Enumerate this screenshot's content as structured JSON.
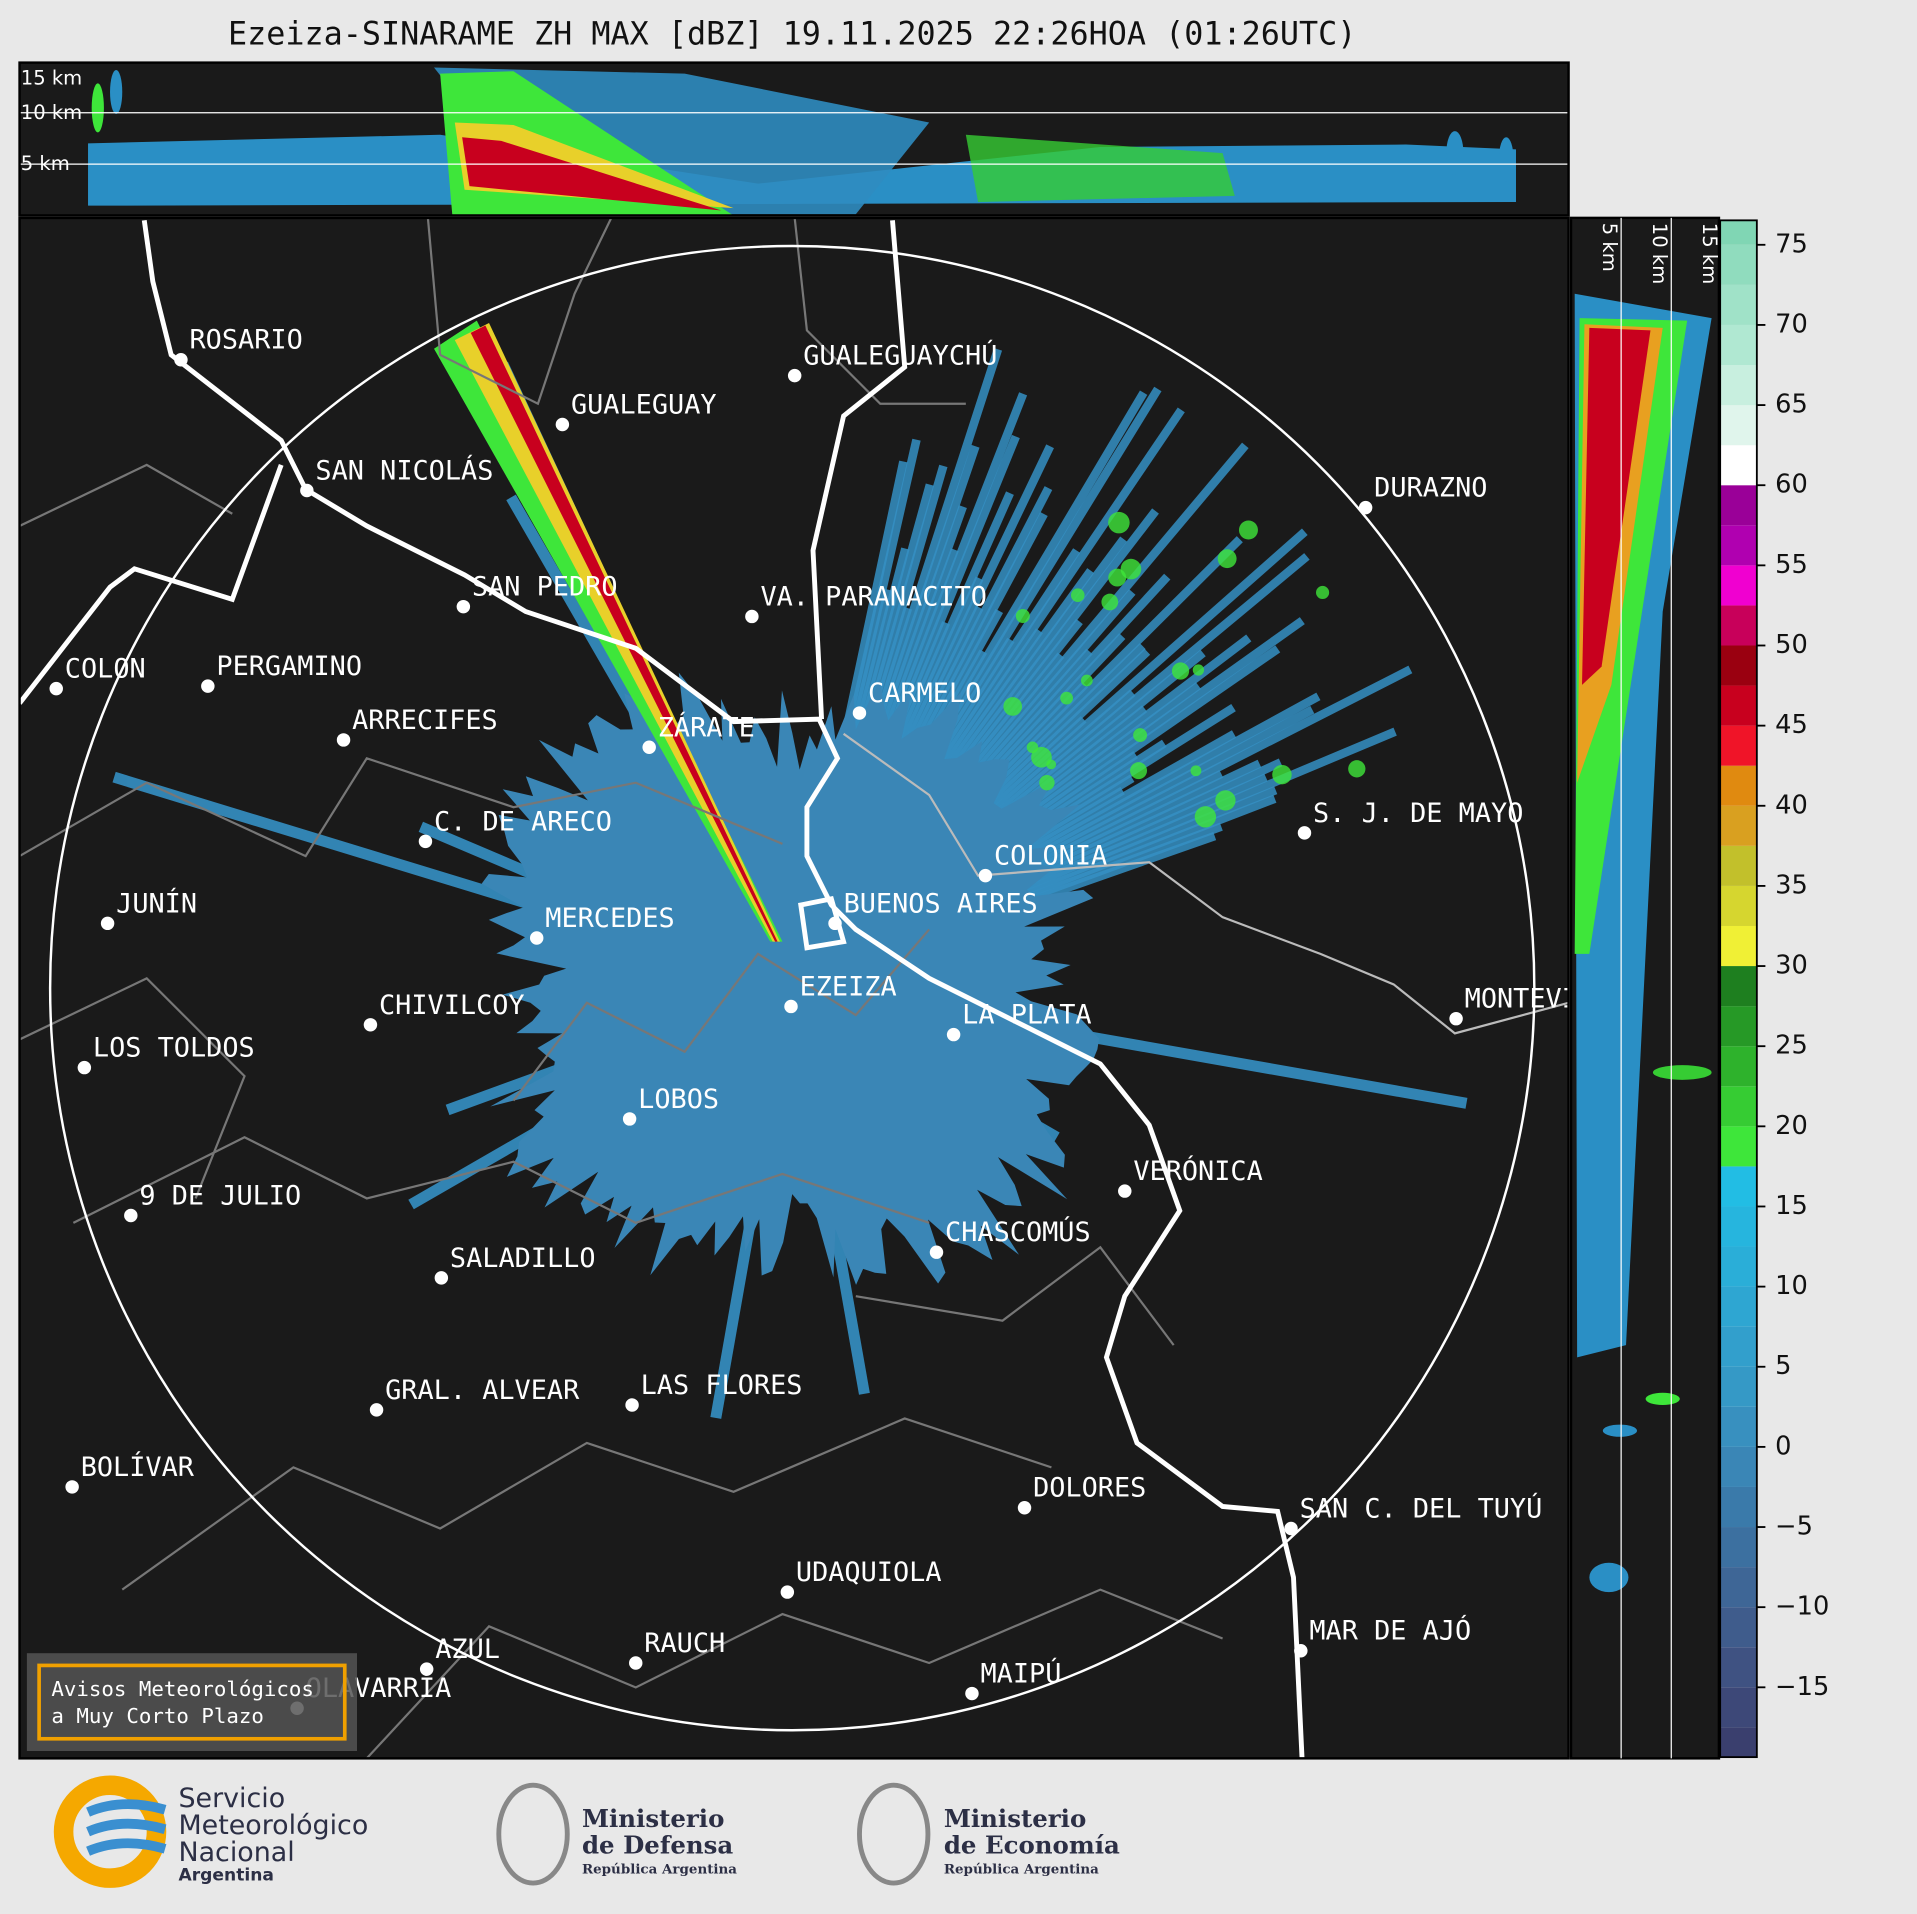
{
  "title": "Ezeiza-SINARAME ZH MAX [dBZ] 19.11.2025 22:26HOA (01:26UTC)",
  "top_heights": [
    {
      "value": 15,
      "label": "15 km"
    },
    {
      "value": 10,
      "label": "10 km"
    },
    {
      "value": 5,
      "label": "5 km"
    }
  ],
  "side_heights": [
    {
      "value": 5,
      "label": "5 km"
    },
    {
      "value": 10,
      "label": "10 km"
    },
    {
      "value": 15,
      "label": "15 km"
    }
  ],
  "cities": [
    "ROSARIO",
    "GUALEGUAYCHÚ",
    "GUALEGUAY",
    "SAN NICOLÁS",
    "DURAZNO",
    "SAN PEDRO",
    "VA. PARANACITO",
    "COLON",
    "PERGAMINO",
    "CARMELO",
    "ARRECIFES",
    "ZÁRATE",
    "C. DE ARECO",
    "S. J. DE MAYO",
    "COLONIA",
    "BUENOS AIRES",
    "JUNÍN",
    "MERCEDES",
    "EZEIZA",
    "CHIVILCOY",
    "LA PLATA",
    "MONTEVIDEO",
    "LOS TOLDOS",
    "LOBOS",
    "VERÓNICA",
    "9 DE JULIO",
    "CHASCOMÚS",
    "SALADILLO",
    "GRAL. ALVEAR",
    "LAS FLORES",
    "BOLÍVAR",
    "DOLORES",
    "SAN C. DEL TUYÚ",
    "UDAQUIOLA",
    "MAR DE AJÓ",
    "RAUCH",
    "AZUL",
    "OLAVARRÍA",
    "MAIPÚ"
  ],
  "colorbar": {
    "lim": [
      -20,
      77.5
    ],
    "ticks": [
      75,
      70,
      65,
      60,
      55,
      50,
      45,
      40,
      35,
      30,
      25,
      20,
      15,
      10,
      5,
      0,
      {
        "value": -5,
        "label": "−5"
      },
      {
        "value": -10,
        "label": "−10"
      },
      {
        "value": -15,
        "label": "−15"
      }
    ],
    "colors": [
      "#3a3f6e",
      "#3d4878",
      "#3f5282",
      "#3f5c8c",
      "#3e6696",
      "#3c70a0",
      "#3a7aaa",
      "#3a86b6",
      "#3890bf",
      "#3599c6",
      "#329fcc",
      "#2ea6d2",
      "#2aaed8",
      "#26b5de",
      "#22bde4",
      "#3ee63a",
      "#36cc33",
      "#2eb22c",
      "#269926",
      "#1e7f1f",
      "#f0f035",
      "#d6d62f",
      "#c2c02b",
      "#d9a020",
      "#e08a10",
      "#f01428",
      "#c8001e",
      "#9a0010",
      "#c8005a",
      "#f000d0",
      "#b000b0",
      "#9a0098",
      "#ffffff",
      "#e0f5ec",
      "#c8efdf",
      "#b0e8d2",
      "#a0e2c8",
      "#90dcbe",
      "#80d6b4"
    ]
  },
  "warning": [
    "Avisos Meteorológicos",
    "a Muy Corto Plazo"
  ],
  "footer": {
    "smn": [
      "Servicio",
      "Meteorológico",
      "Nacional",
      "Argentina"
    ],
    "defensa": [
      "Ministerio",
      "de Defensa",
      "República Argentina"
    ],
    "economia": [
      "Ministerio",
      "de Economía",
      "República Argentina"
    ]
  }
}
